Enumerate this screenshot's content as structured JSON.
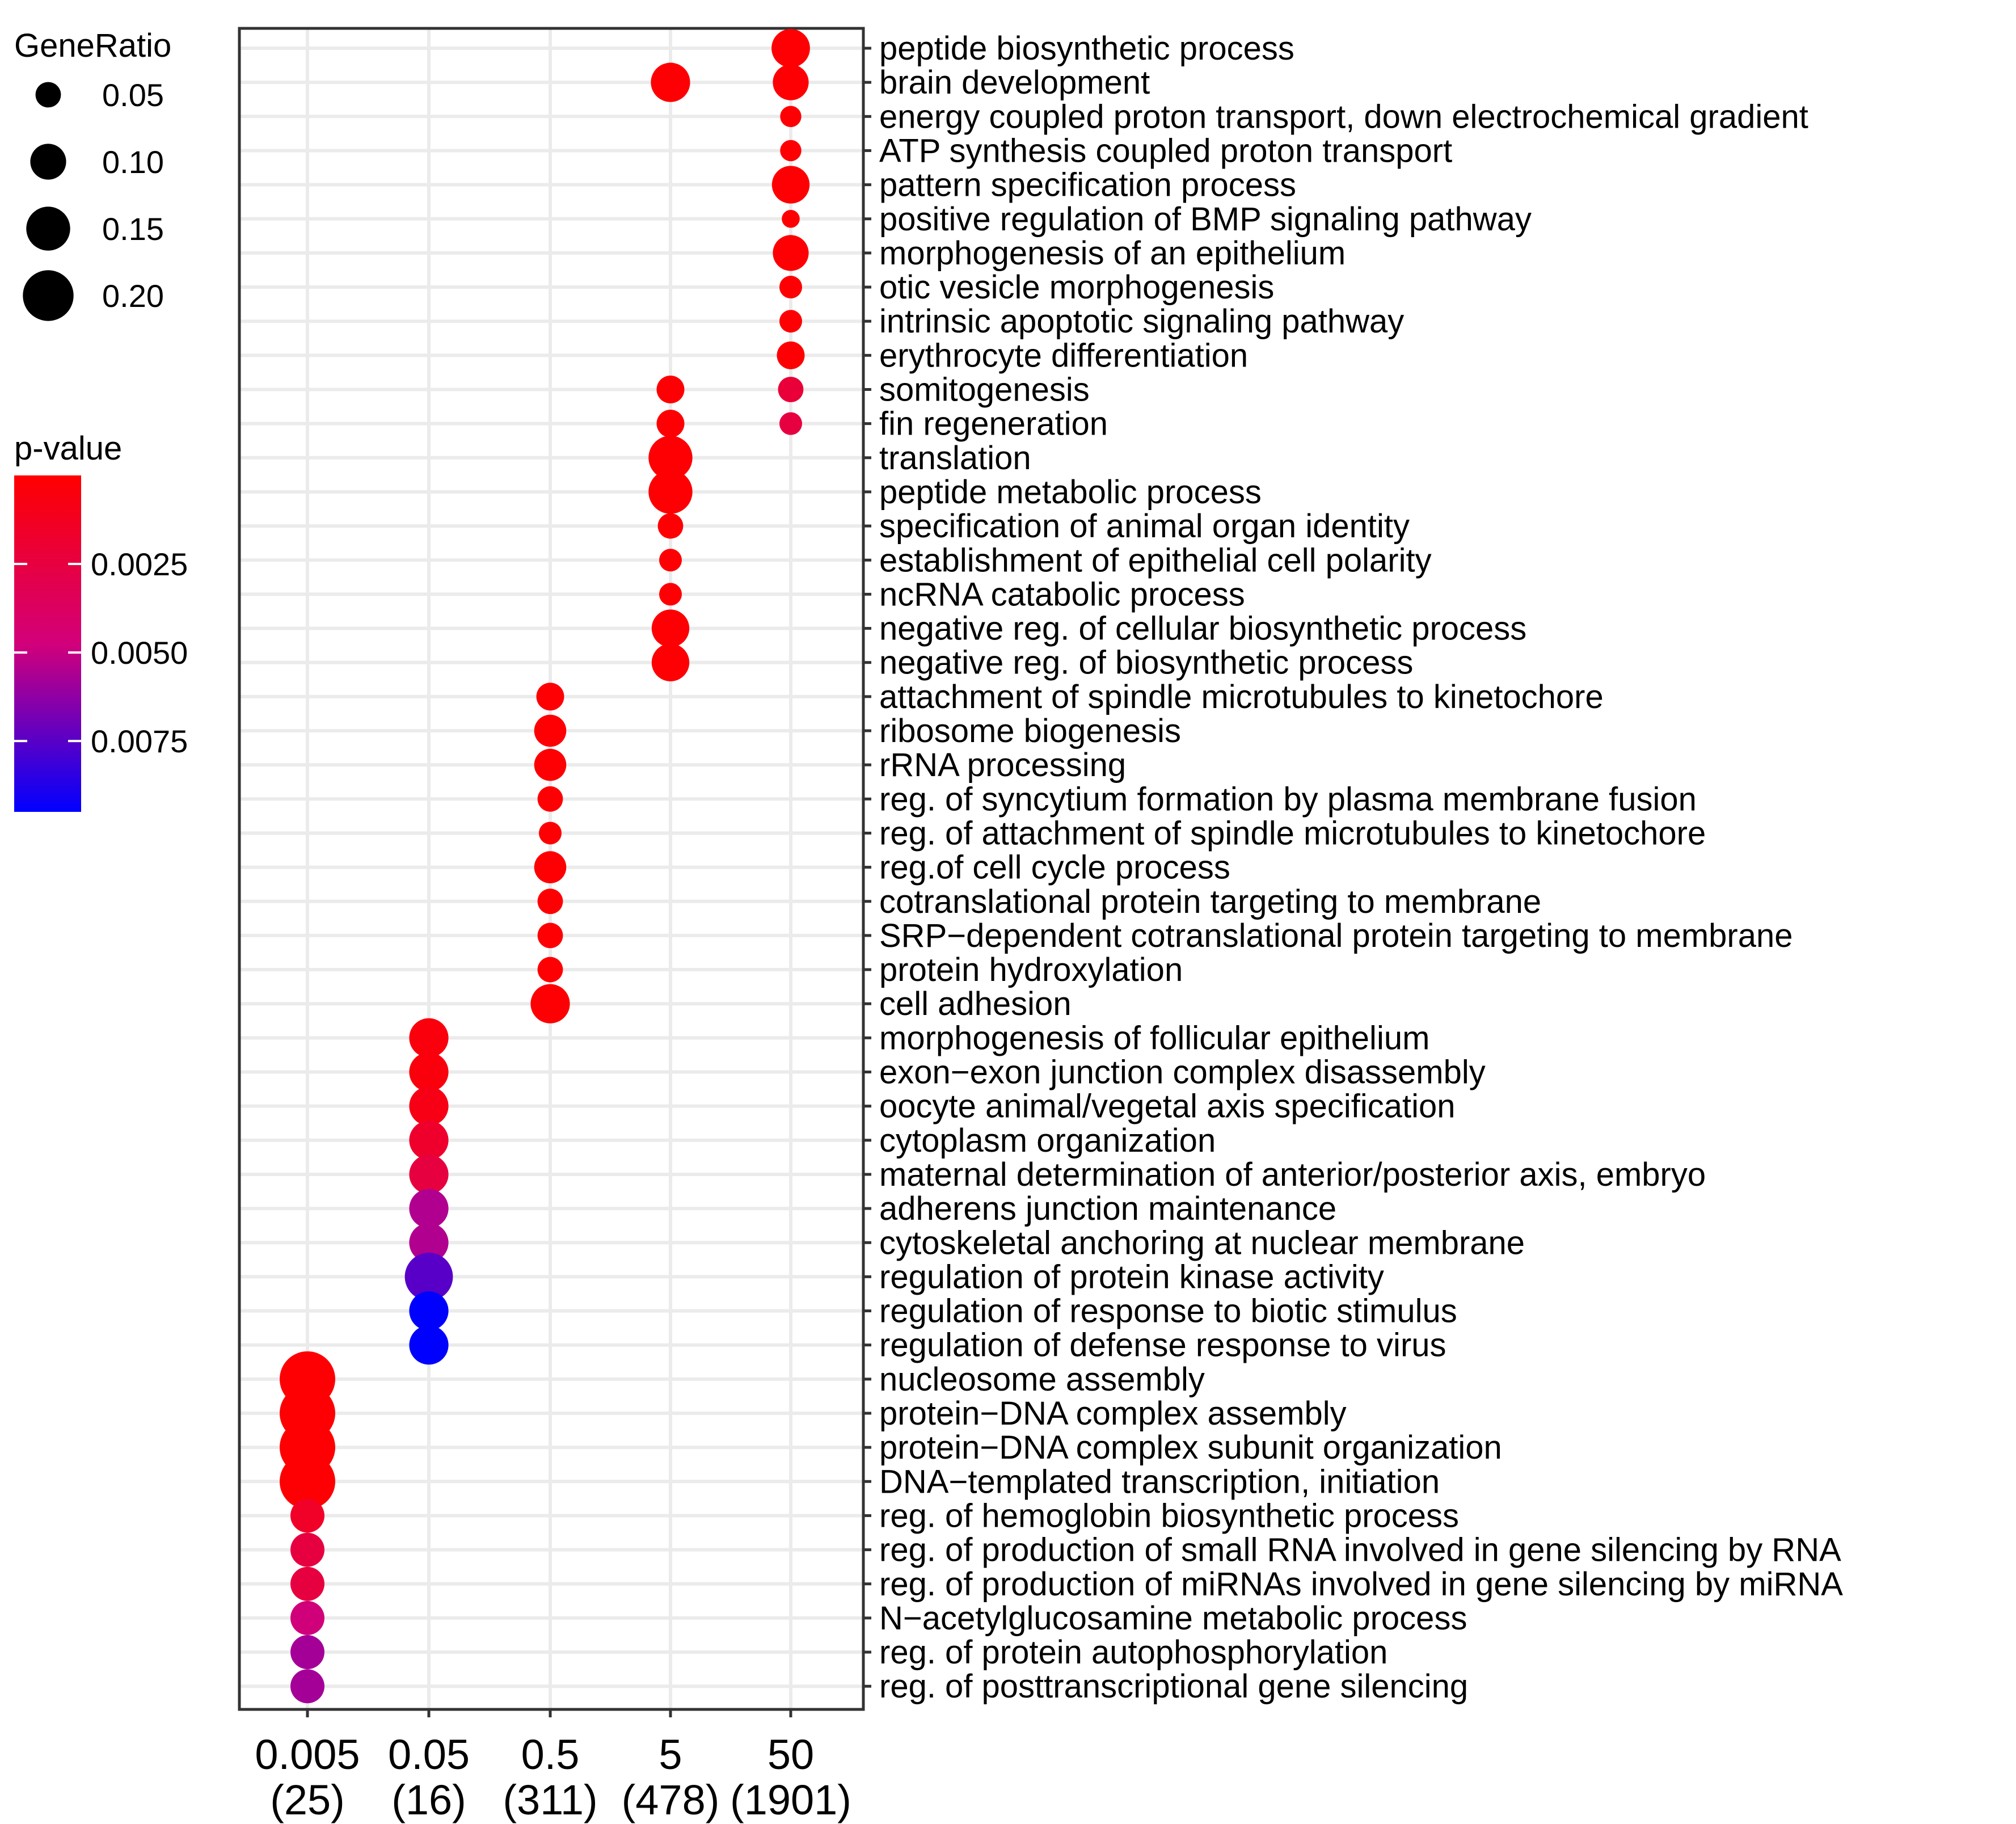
{
  "chart_data": {
    "type": "scatter",
    "title": "",
    "xlabel": "",
    "ylabel": "",
    "x_categories": [
      {
        "label": "0.005",
        "count": "(25)"
      },
      {
        "label": "0.05",
        "count": "(16)"
      },
      {
        "label": "0.5",
        "count": "(311)"
      },
      {
        "label": "5",
        "count": "(478)"
      },
      {
        "label": "50",
        "count": "(1901)"
      }
    ],
    "terms": [
      {
        "name": "peptide biosynthetic process",
        "points": [
          {
            "x": "50",
            "gene_ratio": 0.115,
            "p_value": 0.0001
          }
        ]
      },
      {
        "name": "brain development",
        "points": [
          {
            "x": "5",
            "gene_ratio": 0.12,
            "p_value": 0.0001
          },
          {
            "x": "50",
            "gene_ratio": 0.1,
            "p_value": 0.0001
          }
        ]
      },
      {
        "name": "energy coupled proton transport, down electrochemical gradient",
        "points": [
          {
            "x": "50",
            "gene_ratio": 0.035,
            "p_value": 0.0001
          }
        ]
      },
      {
        "name": "ATP synthesis coupled proton transport",
        "points": [
          {
            "x": "50",
            "gene_ratio": 0.035,
            "p_value": 0.0001
          }
        ]
      },
      {
        "name": "pattern specification process",
        "points": [
          {
            "x": "50",
            "gene_ratio": 0.11,
            "p_value": 0.0001
          }
        ]
      },
      {
        "name": "positive regulation of BMP signaling pathway",
        "points": [
          {
            "x": "50",
            "gene_ratio": 0.025,
            "p_value": 0.0001
          }
        ]
      },
      {
        "name": "morphogenesis of an epithelium",
        "points": [
          {
            "x": "50",
            "gene_ratio": 0.1,
            "p_value": 0.0001
          }
        ]
      },
      {
        "name": "otic vesicle morphogenesis",
        "points": [
          {
            "x": "50",
            "gene_ratio": 0.04,
            "p_value": 0.0001
          }
        ]
      },
      {
        "name": "intrinsic apoptotic signaling pathway",
        "points": [
          {
            "x": "50",
            "gene_ratio": 0.04,
            "p_value": 0.0001
          }
        ]
      },
      {
        "name": "erythrocyte differentiation",
        "points": [
          {
            "x": "50",
            "gene_ratio": 0.06,
            "p_value": 0.0001
          }
        ]
      },
      {
        "name": "somitogenesis",
        "points": [
          {
            "x": "5",
            "gene_ratio": 0.06,
            "p_value": 0.0001
          },
          {
            "x": "50",
            "gene_ratio": 0.05,
            "p_value": 0.0022
          }
        ]
      },
      {
        "name": "fin regeneration",
        "points": [
          {
            "x": "5",
            "gene_ratio": 0.06,
            "p_value": 0.0001
          },
          {
            "x": "50",
            "gene_ratio": 0.04,
            "p_value": 0.0025
          }
        ]
      },
      {
        "name": "translation",
        "points": [
          {
            "x": "5",
            "gene_ratio": 0.15,
            "p_value": 0.0001
          }
        ]
      },
      {
        "name": "peptide metabolic process",
        "points": [
          {
            "x": "5",
            "gene_ratio": 0.15,
            "p_value": 0.0001
          }
        ]
      },
      {
        "name": "specification of animal organ identity",
        "points": [
          {
            "x": "5",
            "gene_ratio": 0.05,
            "p_value": 0.0001
          }
        ]
      },
      {
        "name": "establishment of epithelial cell polarity",
        "points": [
          {
            "x": "5",
            "gene_ratio": 0.04,
            "p_value": 0.0001
          }
        ]
      },
      {
        "name": "ncRNA catabolic process",
        "points": [
          {
            "x": "5",
            "gene_ratio": 0.04,
            "p_value": 0.0001
          }
        ]
      },
      {
        "name": "negative reg. of cellular biosynthetic process",
        "points": [
          {
            "x": "5",
            "gene_ratio": 0.11,
            "p_value": 0.0001
          }
        ]
      },
      {
        "name": "negative reg. of biosynthetic process",
        "points": [
          {
            "x": "5",
            "gene_ratio": 0.11,
            "p_value": 0.0001
          }
        ]
      },
      {
        "name": "attachment of spindle microtubules to kinetochore",
        "points": [
          {
            "x": "0.5",
            "gene_ratio": 0.06,
            "p_value": 0.0001
          }
        ]
      },
      {
        "name": "ribosome biogenesis",
        "points": [
          {
            "x": "0.5",
            "gene_ratio": 0.08,
            "p_value": 0.0001
          }
        ]
      },
      {
        "name": "rRNA processing",
        "points": [
          {
            "x": "0.5",
            "gene_ratio": 0.08,
            "p_value": 0.0001
          }
        ]
      },
      {
        "name": "reg. of syncytium formation by plasma membrane fusion",
        "points": [
          {
            "x": "0.5",
            "gene_ratio": 0.05,
            "p_value": 0.0001
          }
        ]
      },
      {
        "name": "reg. of attachment of spindle microtubules to kinetochore",
        "points": [
          {
            "x": "0.5",
            "gene_ratio": 0.04,
            "p_value": 0.0001
          }
        ]
      },
      {
        "name": "reg.of cell cycle process",
        "points": [
          {
            "x": "0.5",
            "gene_ratio": 0.08,
            "p_value": 0.0001
          }
        ]
      },
      {
        "name": "cotranslational protein targeting to membrane",
        "points": [
          {
            "x": "0.5",
            "gene_ratio": 0.05,
            "p_value": 0.0001
          }
        ]
      },
      {
        "name": "SRP-dependent cotranslational protein targeting to membrane",
        "points": [
          {
            "x": "0.5",
            "gene_ratio": 0.05,
            "p_value": 0.0001
          }
        ]
      },
      {
        "name": "protein hydroxylation",
        "points": [
          {
            "x": "0.5",
            "gene_ratio": 0.05,
            "p_value": 0.0001
          }
        ]
      },
      {
        "name": "cell adhesion",
        "points": [
          {
            "x": "0.5",
            "gene_ratio": 0.12,
            "p_value": 0.0001
          }
        ]
      },
      {
        "name": "morphogenesis of follicular epithelium",
        "points": [
          {
            "x": "0.05",
            "gene_ratio": 0.12,
            "p_value": 0.0005
          }
        ]
      },
      {
        "name": "exon-exon junction complex disassembly",
        "points": [
          {
            "x": "0.05",
            "gene_ratio": 0.12,
            "p_value": 0.0005
          }
        ]
      },
      {
        "name": "oocyte animal/vegetal axis specification",
        "points": [
          {
            "x": "0.05",
            "gene_ratio": 0.12,
            "p_value": 0.0008
          }
        ]
      },
      {
        "name": "cytoplasm organization",
        "points": [
          {
            "x": "0.05",
            "gene_ratio": 0.12,
            "p_value": 0.0017
          }
        ]
      },
      {
        "name": "maternal determination of anterior/posterior axis, embryo",
        "points": [
          {
            "x": "0.05",
            "gene_ratio": 0.12,
            "p_value": 0.0025
          }
        ]
      },
      {
        "name": "adherens junction maintenance",
        "points": [
          {
            "x": "0.05",
            "gene_ratio": 0.12,
            "p_value": 0.0055
          }
        ]
      },
      {
        "name": "cytoskeletal anchoring at nuclear membrane",
        "points": [
          {
            "x": "0.05",
            "gene_ratio": 0.12,
            "p_value": 0.0055
          }
        ]
      },
      {
        "name": "regulation of protein kinase activity",
        "points": [
          {
            "x": "0.05",
            "gene_ratio": 0.18,
            "p_value": 0.0075
          }
        ]
      },
      {
        "name": "regulation of response to biotic stimulus",
        "points": [
          {
            "x": "0.05",
            "gene_ratio": 0.12,
            "p_value": 0.0095
          }
        ]
      },
      {
        "name": "regulation of defense response to virus",
        "points": [
          {
            "x": "0.05",
            "gene_ratio": 0.12,
            "p_value": 0.0095
          }
        ]
      },
      {
        "name": "nucleosome assembly",
        "points": [
          {
            "x": "0.005",
            "gene_ratio": 0.24,
            "p_value": 0.0001
          }
        ]
      },
      {
        "name": "protein-DNA complex assembly",
        "points": [
          {
            "x": "0.005",
            "gene_ratio": 0.24,
            "p_value": 0.0001
          }
        ]
      },
      {
        "name": "protein-DNA complex subunit organization",
        "points": [
          {
            "x": "0.005",
            "gene_ratio": 0.24,
            "p_value": 0.0001
          }
        ]
      },
      {
        "name": "DNA-templated transcription, initiation",
        "points": [
          {
            "x": "0.005",
            "gene_ratio": 0.24,
            "p_value": 0.0001
          }
        ]
      },
      {
        "name": "reg. of hemoglobin biosynthetic process",
        "points": [
          {
            "x": "0.005",
            "gene_ratio": 0.09,
            "p_value": 0.0015
          }
        ]
      },
      {
        "name": "reg. of production of small RNA involved in gene silencing by RNA",
        "points": [
          {
            "x": "0.005",
            "gene_ratio": 0.09,
            "p_value": 0.0025
          }
        ]
      },
      {
        "name": "reg. of production of miRNAs involved in gene silencing by miRNA",
        "points": [
          {
            "x": "0.005",
            "gene_ratio": 0.09,
            "p_value": 0.0025
          }
        ]
      },
      {
        "name": "N-acetylglucosamine metabolic process",
        "points": [
          {
            "x": "0.005",
            "gene_ratio": 0.09,
            "p_value": 0.0048
          }
        ]
      },
      {
        "name": "reg. of protein autophosphorylation",
        "points": [
          {
            "x": "0.005",
            "gene_ratio": 0.09,
            "p_value": 0.0058
          }
        ]
      },
      {
        "name": "reg. of posttranscriptional gene silencing",
        "points": [
          {
            "x": "0.005",
            "gene_ratio": 0.09,
            "p_value": 0.0058
          }
        ]
      }
    ],
    "size_legend": {
      "title": "GeneRatio",
      "breaks": [
        0.05,
        0.1,
        0.15,
        0.2
      ],
      "labels": [
        "0.05",
        "0.10",
        "0.15",
        "0.20"
      ]
    },
    "color_legend": {
      "title": "p-value",
      "range": [
        0,
        0.0095
      ],
      "breaks": [
        0.0025,
        0.005,
        0.0075
      ],
      "labels": [
        "0.0025",
        "0.0050",
        "0.0075"
      ],
      "low_color": "#ff0000",
      "mid_color": "#d2007a",
      "high_color": "#0000ff"
    },
    "grid": true
  }
}
